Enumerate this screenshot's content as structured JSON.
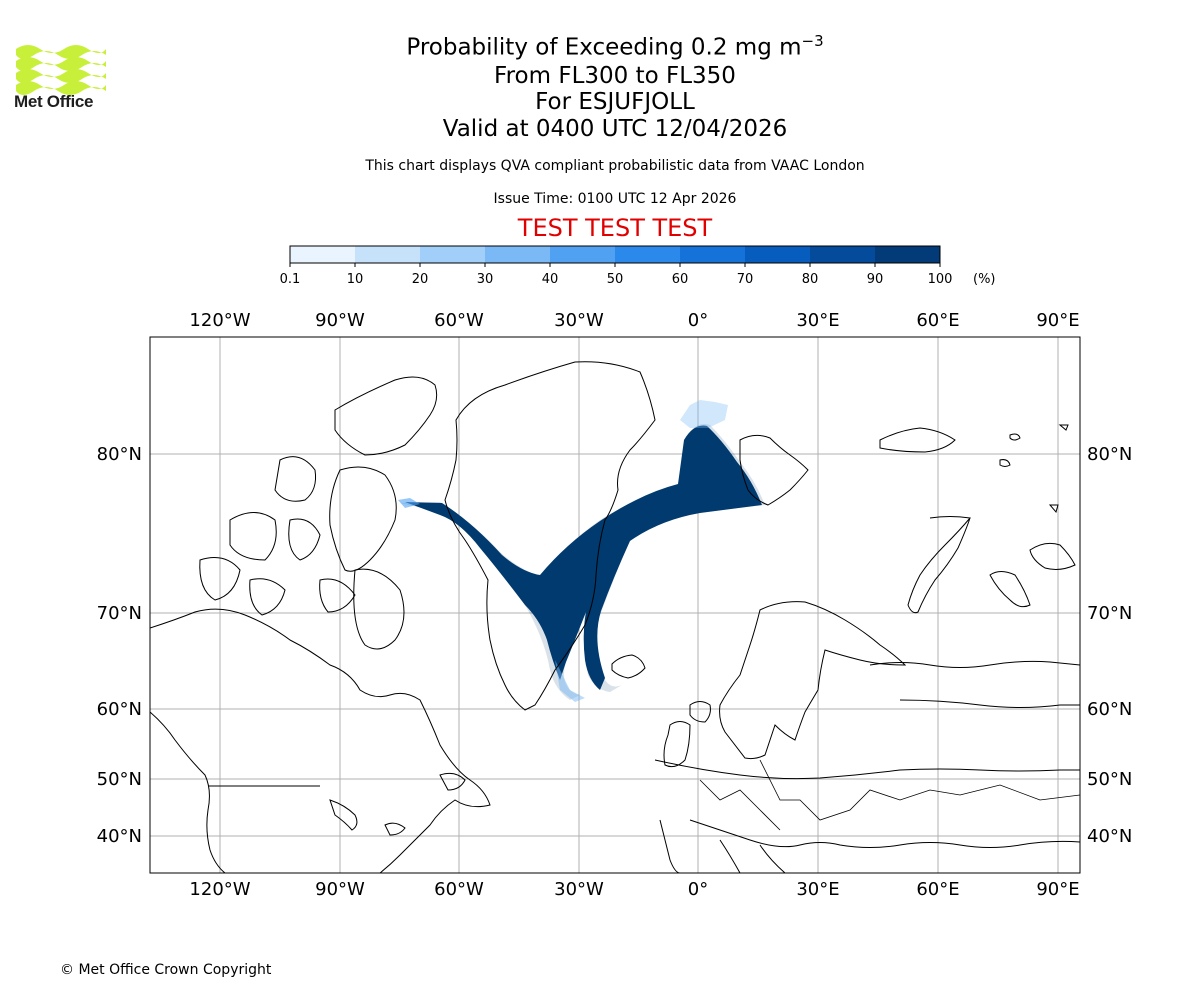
{
  "branding": {
    "logo_text": "Met Office",
    "copyright": "© Met Office Crown Copyright"
  },
  "header": {
    "title_prefix": "Probability of Exceeding 0.2 mg m",
    "title_exponent": "−3",
    "flight_levels": "From FL300 to FL350",
    "volcano": "For ESJUFJOLL",
    "valid_time": "Valid at 0400 UTC 12/04/2026",
    "source_note": "This chart displays QVA compliant probabilistic data from VAAC London",
    "issue_time": "Issue Time: 0100 UTC 12 Apr 2026",
    "test_banner": "TEST TEST TEST"
  },
  "colorbar": {
    "ticks": [
      "0.1",
      "10",
      "20",
      "30",
      "40",
      "50",
      "60",
      "70",
      "80",
      "90",
      "100"
    ],
    "unit": "(%)",
    "colors": [
      "#eaf4fe",
      "#c6e2fb",
      "#a1cff9",
      "#7ab9f6",
      "#50a1f2",
      "#2b89ec",
      "#1472d8",
      "#075dbd",
      "#044b9b",
      "#033a78",
      "#032956"
    ]
  },
  "map": {
    "lon_labels": [
      "120°W",
      "90°W",
      "60°W",
      "30°W",
      "0°",
      "30°E",
      "60°E",
      "90°E"
    ],
    "lat_labels": [
      "80°N",
      "70°N",
      "60°N",
      "50°N",
      "40°N"
    ],
    "coast_color": "#000000",
    "grid_color": "#b0b0b0",
    "plume_color": "#013a6e"
  }
}
